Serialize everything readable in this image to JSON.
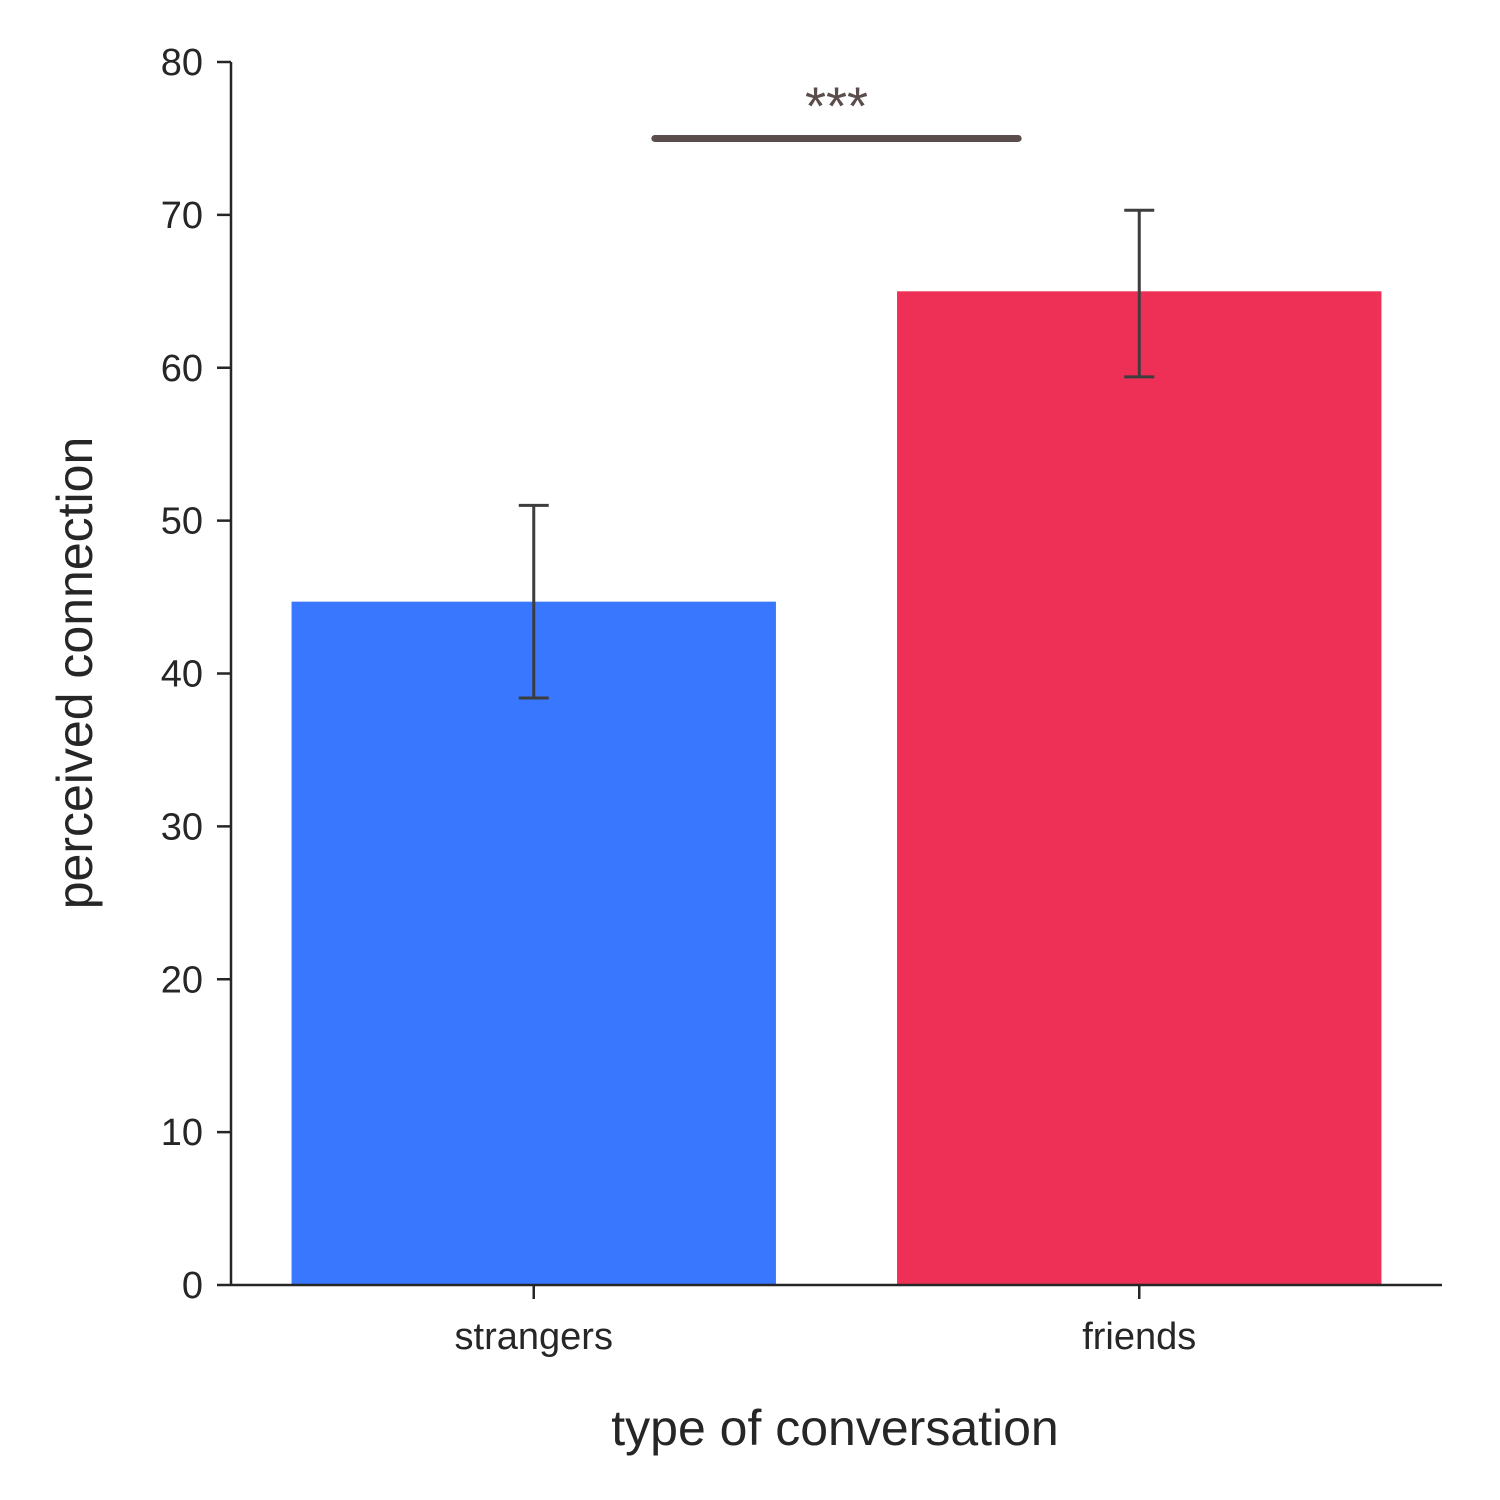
{
  "chart_data": {
    "type": "bar",
    "title": "",
    "xlabel": "type of conversation",
    "ylabel": "perceived connection",
    "ylim": [
      0,
      80
    ],
    "yticks": [
      0,
      10,
      20,
      30,
      40,
      50,
      60,
      70,
      80
    ],
    "categories": [
      "strangers",
      "friends"
    ],
    "values": [
      44.7,
      65.0
    ],
    "error_low": [
      38.4,
      59.4
    ],
    "error_high": [
      51.0,
      70.3
    ],
    "colors": [
      "#3a77ff",
      "#ee3056"
    ],
    "significance": {
      "label": "***",
      "level": 75.0,
      "between": [
        "strangers",
        "friends"
      ]
    },
    "grid": false,
    "legend": "none"
  }
}
